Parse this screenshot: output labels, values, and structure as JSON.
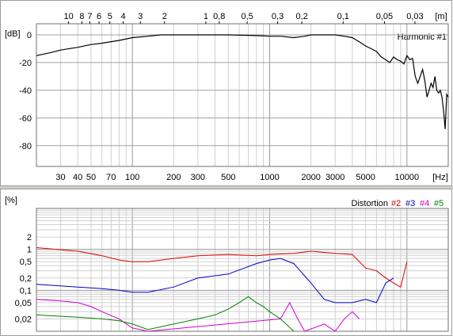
{
  "chart_data": [
    {
      "type": "line",
      "title": "Harmonic #1",
      "ylabel": "[dB]",
      "xlabel": "[Hz]",
      "xscale": "log",
      "xlim": [
        20,
        20000
      ],
      "ylim": [
        -95,
        8
      ],
      "yticks": [
        0,
        -20,
        -40,
        -60,
        -80
      ],
      "xticks_bottom": [
        "30",
        "40",
        "50",
        "70",
        "100",
        "200",
        "300",
        "500",
        "1000",
        "2000",
        "3000",
        "5000",
        "10000",
        "[Hz]"
      ],
      "xticks_top": [
        "10",
        "8",
        "7",
        "6",
        "5",
        "4",
        "3",
        "2",
        "1",
        "0,8",
        "0,5",
        "0,3",
        "0,2",
        "0,1",
        "0,05",
        "0,03",
        "[m]"
      ],
      "grid": true,
      "series": [
        {
          "name": "Harmonic #1",
          "color": "#000000",
          "x": [
            20,
            25,
            30,
            40,
            50,
            60,
            80,
            100,
            130,
            160,
            200,
            300,
            500,
            800,
            1000,
            1200,
            1500,
            1800,
            2000,
            2500,
            3000,
            3500,
            4000,
            4500,
            5000,
            5500,
            6000,
            6500,
            7000,
            7500,
            8000,
            8500,
            9000,
            9500,
            10000,
            10500,
            11000,
            11500,
            12000,
            12500,
            13000,
            13500,
            14000,
            14500,
            15000,
            15500,
            16000,
            16500,
            17000,
            17500,
            18000,
            18500,
            19000,
            19500,
            20000
          ],
          "values": [
            -15,
            -13,
            -11,
            -9,
            -7,
            -6,
            -4,
            -2,
            -1,
            0,
            0,
            0,
            0,
            -0.5,
            -1,
            -1,
            -2,
            -1,
            0,
            0,
            0,
            -1,
            -2,
            -5,
            -8,
            -10,
            -12,
            -16,
            -18,
            -20,
            -16,
            -18,
            -19,
            -21,
            -15,
            -18,
            -17,
            -30,
            -35,
            -30,
            -25,
            -33,
            -45,
            -40,
            -35,
            -38,
            -30,
            -40,
            -42,
            -40,
            -45,
            -55,
            -68,
            -43,
            -45
          ]
        }
      ]
    },
    {
      "type": "line",
      "title": "Distortion",
      "ylabel": "[%]",
      "xscale": "log",
      "yscale": "log",
      "xlim": [
        20,
        20000
      ],
      "ylim": [
        0.01,
        10
      ],
      "yticks": [
        "2",
        "1",
        "0,5",
        "0,2",
        "0,1",
        "0,05",
        "0,02"
      ],
      "grid": true,
      "legend": [
        "#2",
        "#3",
        "#4",
        "#5"
      ],
      "series": [
        {
          "name": "#2",
          "color": "#e00000",
          "x": [
            20,
            40,
            60,
            80,
            100,
            130,
            200,
            300,
            500,
            800,
            1000,
            1500,
            2000,
            3000,
            4000,
            5000,
            6000,
            7000,
            8000,
            9000,
            10000
          ],
          "values": [
            1.1,
            0.9,
            0.7,
            0.55,
            0.5,
            0.5,
            0.6,
            0.7,
            0.75,
            0.7,
            0.75,
            0.8,
            0.9,
            0.8,
            0.75,
            0.35,
            0.3,
            0.2,
            0.15,
            0.12,
            0.5
          ]
        },
        {
          "name": "#3",
          "color": "#0000c0",
          "x": [
            20,
            40,
            60,
            80,
            100,
            130,
            200,
            300,
            500,
            800,
            1000,
            1200,
            1500,
            2000,
            2500,
            3000,
            4000,
            5000,
            6000,
            7000,
            8000
          ],
          "values": [
            0.14,
            0.12,
            0.11,
            0.1,
            0.09,
            0.09,
            0.12,
            0.2,
            0.25,
            0.45,
            0.55,
            0.6,
            0.45,
            0.15,
            0.06,
            0.05,
            0.05,
            0.06,
            0.05,
            0.15,
            0.2
          ]
        },
        {
          "name": "#4",
          "color": "#d000d0",
          "x": [
            20,
            30,
            40,
            50,
            60,
            80,
            100,
            130,
            1200,
            1400,
            1600,
            1800,
            2500,
            3000,
            3500,
            4000,
            4500
          ],
          "values": [
            0.06,
            0.055,
            0.05,
            0.04,
            0.03,
            0.02,
            0.012,
            0.01,
            0.02,
            0.05,
            0.02,
            0.01,
            0.015,
            0.01,
            0.02,
            0.03,
            0.02
          ]
        },
        {
          "name": "#5",
          "color": "#008000",
          "x": [
            20,
            40,
            60,
            80,
            100,
            130,
            200,
            300,
            400,
            500,
            600,
            700,
            800,
            900,
            1000,
            1200,
            1500
          ],
          "values": [
            0.025,
            0.022,
            0.02,
            0.018,
            0.015,
            0.011,
            0.015,
            0.02,
            0.025,
            0.035,
            0.05,
            0.07,
            0.05,
            0.04,
            0.03,
            0.02,
            0.01
          ]
        }
      ]
    }
  ]
}
